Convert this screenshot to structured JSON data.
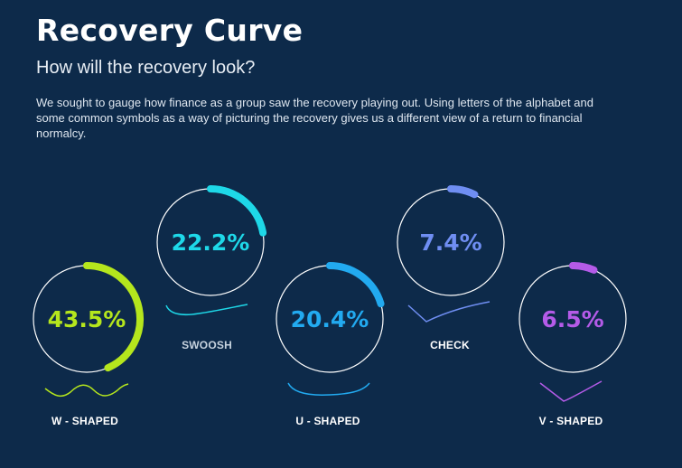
{
  "header": {
    "title": "Recovery Curve",
    "subtitle": "How will the recovery look?",
    "description": "We sought to gauge how finance as a group saw the recovery playing out. Using letters of the alphabet and some common symbols as a way of picturing the recovery gives us a different view of a return to financial normalcy."
  },
  "chart_data": {
    "type": "pie",
    "categories": [
      "W - SHAPED",
      "SWOOSH",
      "U - SHAPED",
      "CHECK",
      "V - SHAPED"
    ],
    "values": [
      43.5,
      22.2,
      20.4,
      7.4,
      6.5
    ],
    "value_labels": [
      "43.5%",
      "22.2%",
      "20.4%",
      "7.4%",
      "6.5%"
    ],
    "colors": [
      "#b5e61d",
      "#1ed8e8",
      "#22aaf0",
      "#6f8ef2",
      "#b45be8"
    ]
  }
}
